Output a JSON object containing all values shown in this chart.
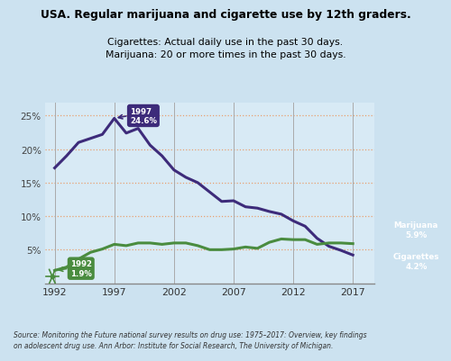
{
  "title_line1": "USA. Regular marijuana and cigarette use by 12th graders.",
  "title_line2": "Cigarettes: Actual daily use in the past 30 days.\nMarijuana: 20 or more times in the past 30 days.",
  "source_text": "Source: Monitoring the Future national survey results on drug use: 1975–2017: Overview, key findings\non adolescent drug use. Ann Arbor: Institute for Social Research, The University of Michigan.",
  "bg_color": "#cce2f0",
  "plot_bg_color": "#d8eaf5",
  "cigarette_color": "#3d2b7a",
  "marijuana_color": "#4a8c3f",
  "grid_color": "#e8a070",
  "years_cigarettes": [
    1992,
    1993,
    1994,
    1995,
    1996,
    1997,
    1998,
    1999,
    2000,
    2001,
    2002,
    2003,
    2004,
    2005,
    2006,
    2007,
    2008,
    2009,
    2010,
    2011,
    2012,
    2013,
    2014,
    2015,
    2016,
    2017
  ],
  "values_cigarettes": [
    17.2,
    19.0,
    21.0,
    21.6,
    22.2,
    24.6,
    22.4,
    23.1,
    20.6,
    19.0,
    16.9,
    15.8,
    15.0,
    13.6,
    12.2,
    12.3,
    11.4,
    11.2,
    10.7,
    10.3,
    9.3,
    8.5,
    6.7,
    5.5,
    4.9,
    4.2
  ],
  "years_marijuana": [
    1992,
    1993,
    1994,
    1995,
    1996,
    1997,
    1998,
    1999,
    2000,
    2001,
    2002,
    2003,
    2004,
    2005,
    2006,
    2007,
    2008,
    2009,
    2010,
    2011,
    2012,
    2013,
    2014,
    2015,
    2016,
    2017
  ],
  "values_marijuana": [
    1.9,
    2.4,
    3.6,
    4.6,
    5.1,
    5.8,
    5.6,
    6.0,
    6.0,
    5.8,
    6.0,
    6.0,
    5.6,
    5.0,
    5.0,
    5.1,
    5.4,
    5.2,
    6.1,
    6.6,
    6.5,
    6.5,
    5.8,
    6.0,
    6.0,
    5.9
  ],
  "ylim": [
    0,
    27
  ],
  "yticks": [
    5,
    10,
    15,
    20,
    25
  ],
  "xticks": [
    1992,
    1997,
    2002,
    2007,
    2012,
    2017
  ],
  "annotation_1992_label": "1992\n1.9%",
  "annotation_1997_label": "1997\n24.6%",
  "annotation_end_marijuana_label": "Marijuana\n5.9%",
  "annotation_end_cigarettes_label": "Cigarettes\n4.2%",
  "xlim_left": 1991.2,
  "xlim_right": 2018.8
}
